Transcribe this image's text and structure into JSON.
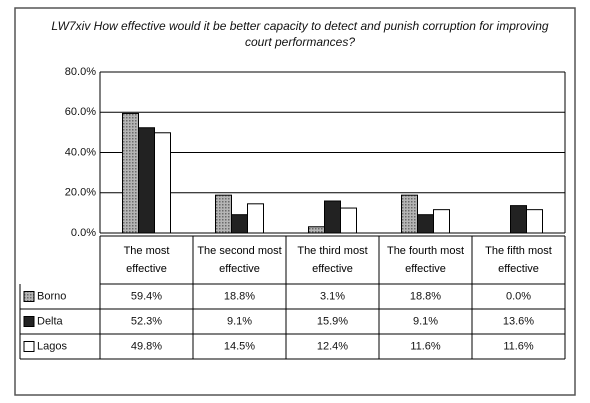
{
  "chart_data": {
    "type": "bar",
    "title": "LW7xiv How effective would it be better capacity to detect and punish corruption for improving court performances?",
    "categories": [
      "The most effective",
      "The second most effective",
      "The third most effective",
      "The fourth most effective",
      "The fifth most effective"
    ],
    "series": [
      {
        "name": "Borno",
        "color": "#9a9a9a",
        "values": [
          59.4,
          18.8,
          3.1,
          18.8,
          0.0
        ],
        "value_labels": [
          "59.4%",
          "18.8%",
          "3.1%",
          "18.8%",
          "0.0%"
        ]
      },
      {
        "name": "Delta",
        "color": "#222222",
        "values": [
          52.3,
          9.1,
          15.9,
          9.1,
          13.6
        ],
        "value_labels": [
          "52.3%",
          "9.1%",
          "15.9%",
          "9.1%",
          "13.6%"
        ]
      },
      {
        "name": "Lagos",
        "color": "#ffffff",
        "values": [
          49.8,
          14.5,
          12.4,
          11.6,
          11.6
        ],
        "value_labels": [
          "49.8%",
          "14.5%",
          "12.4%",
          "11.6%",
          "11.6%"
        ]
      }
    ],
    "ylim": [
      0,
      80
    ],
    "yticks": [
      {
        "value": 0,
        "label": "0.0%"
      },
      {
        "value": 20,
        "label": "20.0%"
      },
      {
        "value": 40,
        "label": "40.0%"
      },
      {
        "value": 60,
        "label": "60.0%"
      },
      {
        "value": 80,
        "label": "80.0%"
      }
    ],
    "grid": true
  }
}
